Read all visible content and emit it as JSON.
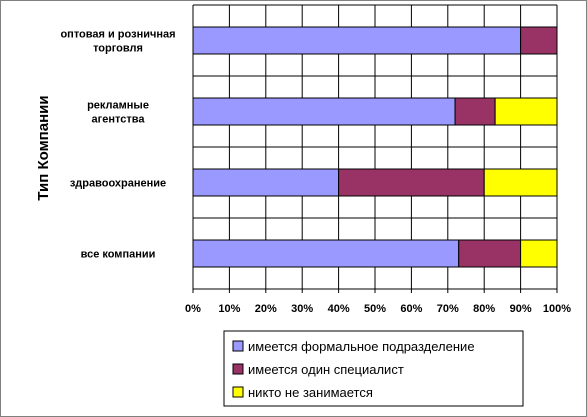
{
  "chart_data": {
    "type": "bar",
    "orientation": "horizontal",
    "stacked": true,
    "percent": true,
    "ylabel": "Тип Компании",
    "categories": [
      [
        "оптовая и розничная",
        "торговля"
      ],
      [
        "рекламные",
        "агентства"
      ],
      [
        "здравоохранение"
      ],
      [
        "все компании"
      ]
    ],
    "series": [
      {
        "name": "имеется формальное подразделение",
        "color": "#9999ff",
        "values": [
          90,
          72,
          40,
          73
        ]
      },
      {
        "name": "имеется один специалист",
        "color": "#993366",
        "values": [
          10,
          11,
          40,
          17
        ]
      },
      {
        "name": "никто не занимается",
        "color": "#ffff00",
        "values": [
          0,
          17,
          20,
          10
        ]
      }
    ],
    "xlim": [
      0,
      100
    ],
    "xticks": [
      "0%",
      "10%",
      "20%",
      "30%",
      "40%",
      "50%",
      "60%",
      "70%",
      "80%",
      "90%",
      "100%"
    ],
    "grid": true,
    "legend_position": "bottom-right"
  }
}
